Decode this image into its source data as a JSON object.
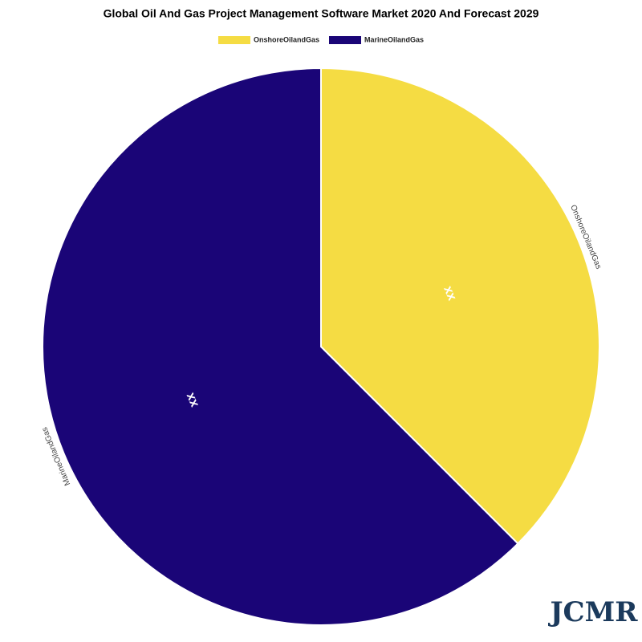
{
  "chart_data": {
    "type": "pie",
    "title": "Global Oil And Gas Project Management Software Market 2020 And Forecast 2029",
    "categories": [
      "OnshoreOilandGas",
      "MarineOilandGas"
    ],
    "values": [
      37.5,
      62.5
    ],
    "value_labels": [
      "xx",
      "xx"
    ],
    "colors": [
      "#f5dc43",
      "#1a0577"
    ],
    "legend": "top"
  },
  "logo": "JCMR"
}
